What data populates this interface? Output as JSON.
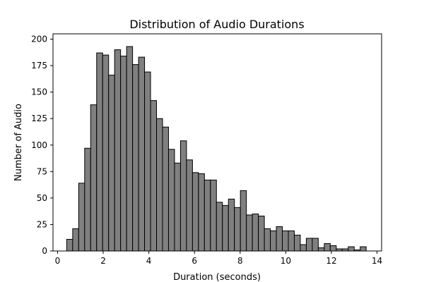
{
  "chart_data": {
    "type": "bar",
    "title": "Distribution of Audio Durations",
    "xlabel": "Duration (seconds)",
    "ylabel": "Number of Audio",
    "xlim": [
      -0.2,
      14.2
    ],
    "ylim": [
      0,
      205
    ],
    "x_ticks": [
      0,
      2,
      4,
      6,
      8,
      10,
      12,
      14
    ],
    "y_ticks": [
      0,
      25,
      50,
      75,
      100,
      125,
      150,
      175,
      200
    ],
    "bin_start": 0.4,
    "bin_width": 0.2625,
    "values": [
      11,
      21,
      64,
      97,
      138,
      187,
      185,
      166,
      190,
      184,
      193,
      176,
      183,
      169,
      142,
      125,
      117,
      96,
      83,
      104,
      86,
      74,
      73,
      67,
      67,
      46,
      43,
      49,
      41,
      57,
      34,
      35,
      33,
      21,
      19,
      23,
      19,
      19,
      15,
      6,
      12,
      12,
      3,
      7,
      5,
      2,
      2,
      4,
      1,
      4
    ],
    "bar_color": "#808080",
    "edge_color": "#000000",
    "grid": false
  }
}
